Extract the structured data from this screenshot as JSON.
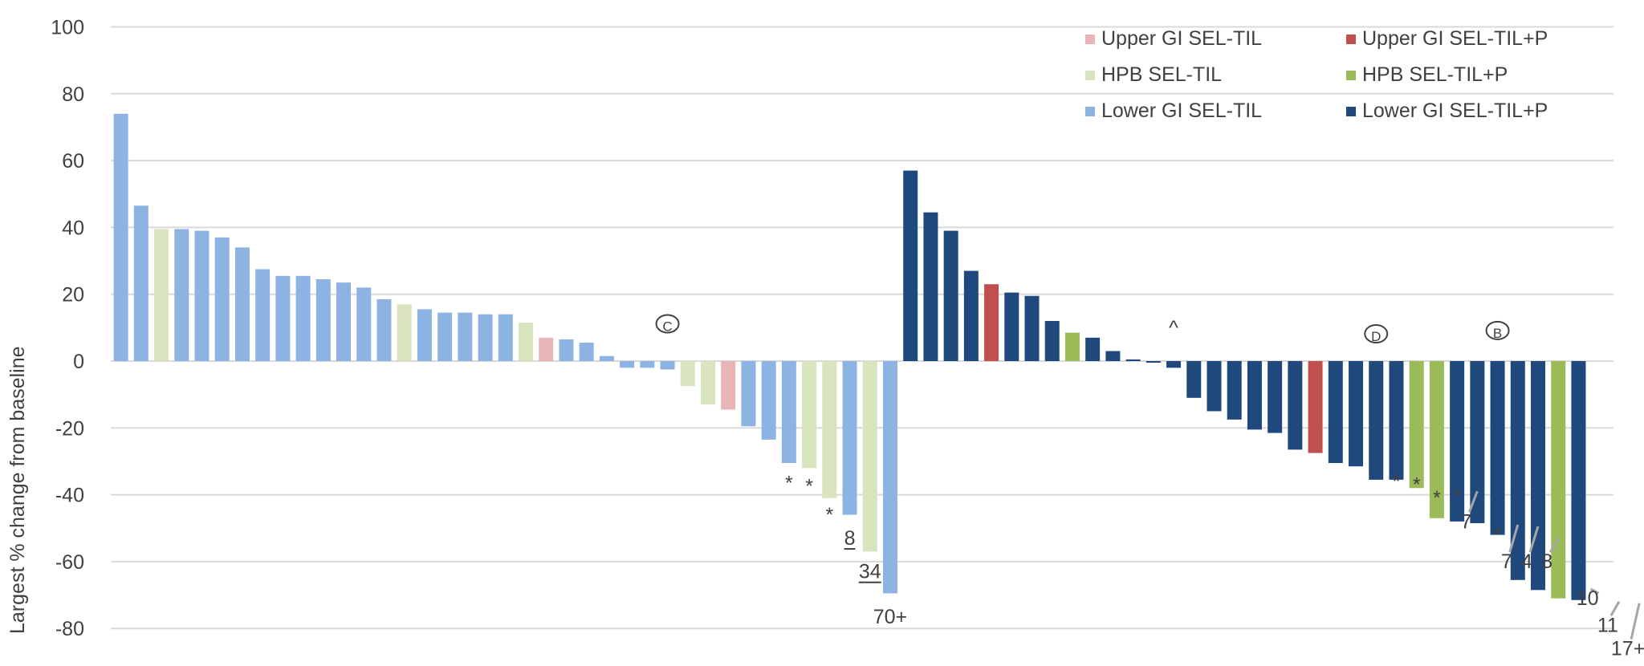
{
  "chart_data": {
    "type": "bar",
    "title": "",
    "xlabel": "",
    "ylabel": "Largest % change from baseline",
    "ylim": [
      -80,
      100
    ],
    "yticks": [
      100,
      80,
      60,
      40,
      20,
      0,
      -20,
      -40,
      -60,
      -80
    ],
    "grid": true,
    "legend_placement": "top-right",
    "series": [
      {
        "key": "ugi",
        "name": "Upper GI SEL-TIL",
        "color": "#e8b4b5"
      },
      {
        "key": "ugip",
        "name": "Upper GI SEL-TIL+P",
        "color": "#c0504d"
      },
      {
        "key": "hpb",
        "name": "HPB SEL-TIL",
        "color": "#d7e4bd"
      },
      {
        "key": "hpbp",
        "name": "HPB SEL-TIL+P",
        "color": "#9bbb59"
      },
      {
        "key": "lgi",
        "name": "Lower GI SEL-TIL",
        "color": "#8db3e2"
      },
      {
        "key": "lgip",
        "name": "Lower GI SEL-TIL+P",
        "color": "#1f497d"
      }
    ],
    "bars": [
      {
        "s": "lgi",
        "v": 74
      },
      {
        "s": "lgi",
        "v": 46.5
      },
      {
        "s": "hpb",
        "v": 39.5
      },
      {
        "s": "lgi",
        "v": 39.5
      },
      {
        "s": "lgi",
        "v": 39
      },
      {
        "s": "lgi",
        "v": 37
      },
      {
        "s": "lgi",
        "v": 34
      },
      {
        "s": "lgi",
        "v": 27.5
      },
      {
        "s": "lgi",
        "v": 25.5
      },
      {
        "s": "lgi",
        "v": 25.5
      },
      {
        "s": "lgi",
        "v": 24.5
      },
      {
        "s": "lgi",
        "v": 23.5
      },
      {
        "s": "lgi",
        "v": 22
      },
      {
        "s": "lgi",
        "v": 18.5
      },
      {
        "s": "hpb",
        "v": 17
      },
      {
        "s": "lgi",
        "v": 15.5
      },
      {
        "s": "lgi",
        "v": 14.5
      },
      {
        "s": "lgi",
        "v": 14.5
      },
      {
        "s": "lgi",
        "v": 14
      },
      {
        "s": "lgi",
        "v": 14
      },
      {
        "s": "hpb",
        "v": 11.5
      },
      {
        "s": "ugi",
        "v": 7
      },
      {
        "s": "lgi",
        "v": 6.5
      },
      {
        "s": "lgi",
        "v": 5.5
      },
      {
        "s": "lgi",
        "v": 1.5
      },
      {
        "s": "lgi",
        "v": -2
      },
      {
        "s": "lgi",
        "v": -2
      },
      {
        "s": "lgi",
        "v": -2.5
      },
      {
        "s": "hpb",
        "v": -7.5
      },
      {
        "s": "hpb",
        "v": -13
      },
      {
        "s": "ugi",
        "v": -14.5
      },
      {
        "s": "lgi",
        "v": -19.5
      },
      {
        "s": "lgi",
        "v": -23.5
      },
      {
        "s": "lgi",
        "v": -30.5
      },
      {
        "s": "hpb",
        "v": -32
      },
      {
        "s": "hpb",
        "v": -41
      },
      {
        "s": "lgi",
        "v": -46
      },
      {
        "s": "hpb",
        "v": -57
      },
      {
        "s": "lgi",
        "v": -69.5
      },
      {
        "s": "lgip",
        "v": 57
      },
      {
        "s": "lgip",
        "v": 44.5
      },
      {
        "s": "lgip",
        "v": 39
      },
      {
        "s": "lgip",
        "v": 27
      },
      {
        "s": "ugip",
        "v": 23
      },
      {
        "s": "lgip",
        "v": 20.5
      },
      {
        "s": "lgip",
        "v": 19.5
      },
      {
        "s": "lgip",
        "v": 12
      },
      {
        "s": "hpbp",
        "v": 8.5
      },
      {
        "s": "lgip",
        "v": 7
      },
      {
        "s": "lgip",
        "v": 3
      },
      {
        "s": "lgip",
        "v": 0.5
      },
      {
        "s": "lgip",
        "v": 0
      },
      {
        "s": "lgip",
        "v": -2
      },
      {
        "s": "lgip",
        "v": -11
      },
      {
        "s": "lgip",
        "v": -15
      },
      {
        "s": "lgip",
        "v": -17.5
      },
      {
        "s": "lgip",
        "v": -20.5
      },
      {
        "s": "lgip",
        "v": -21.5
      },
      {
        "s": "lgip",
        "v": -26.5
      },
      {
        "s": "ugip",
        "v": -27.5
      },
      {
        "s": "lgip",
        "v": -30.5
      },
      {
        "s": "lgip",
        "v": -31.5
      },
      {
        "s": "lgip",
        "v": -35.5
      },
      {
        "s": "lgip",
        "v": -35.5
      },
      {
        "s": "hpbp",
        "v": -38
      },
      {
        "s": "hpbp",
        "v": -47
      },
      {
        "s": "lgip",
        "v": -48
      },
      {
        "s": "lgip",
        "v": -48.5
      },
      {
        "s": "lgip",
        "v": -52
      },
      {
        "s": "lgip",
        "v": -65.5
      },
      {
        "s": "lgip",
        "v": -68.5
      },
      {
        "s": "hpbp",
        "v": -71
      },
      {
        "s": "lgip",
        "v": -71.5
      }
    ],
    "annotations": [
      {
        "text": "C",
        "type": "circled",
        "bar": 27,
        "v": 9
      },
      {
        "text": "D",
        "type": "circled",
        "bar": 62,
        "v": 6
      },
      {
        "text": "B",
        "type": "circled",
        "bar": 68,
        "v": 7
      },
      {
        "text": "^",
        "type": "text",
        "bar": 52,
        "v": 8
      },
      {
        "text": "*",
        "type": "text",
        "bar": 33,
        "v": -38.5
      },
      {
        "text": "*",
        "type": "text",
        "bar": 34,
        "v": -39.5
      },
      {
        "text": "*",
        "type": "text",
        "bar": 35,
        "v": -48
      },
      {
        "text": "8",
        "type": "underlined",
        "bar": 36,
        "v": -55
      },
      {
        "text": "34",
        "type": "underlined",
        "bar": 37,
        "v": -65
      },
      {
        "text": "70+",
        "type": "text",
        "bar": 38,
        "v": -78.5
      },
      {
        "text": "*",
        "type": "text",
        "bar": 63,
        "v": -38
      },
      {
        "text": "*",
        "type": "text",
        "bar": 64,
        "v": -39
      },
      {
        "text": "*",
        "type": "text",
        "bar": 65,
        "v": -43
      },
      {
        "text": "*",
        "type": "text",
        "bar": 66,
        "v": -42.5
      },
      {
        "text": "7",
        "type": "leader",
        "bar": 67,
        "v": -50,
        "leader_from": -38
      },
      {
        "text": "*",
        "type": "text",
        "bar": 68,
        "v": -54
      },
      {
        "text": "7",
        "type": "leader",
        "bar": 69,
        "v": -62,
        "leader_from": -48
      },
      {
        "text": "4",
        "type": "leader",
        "bar": 70,
        "v": -62,
        "leader_from": -48.5
      },
      {
        "text": "8",
        "type": "leader",
        "bar": 71,
        "v": -62,
        "leader_from": -52
      },
      {
        "text": "10",
        "type": "leader",
        "bar": 73,
        "v": -73,
        "leader_from": -68.5
      },
      {
        "text": "11",
        "type": "leader",
        "bar": 74,
        "v": -81,
        "leader_from": -71
      },
      {
        "text": "17+",
        "type": "leader",
        "bar": 75,
        "v": -88,
        "leader_from": -71.5
      }
    ]
  }
}
